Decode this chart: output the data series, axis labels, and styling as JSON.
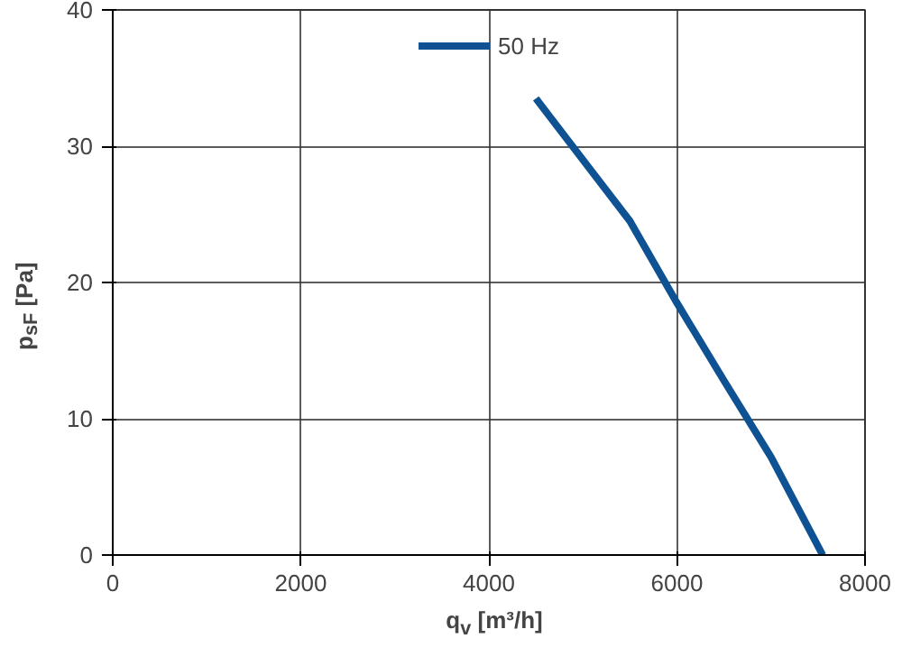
{
  "chart_data": {
    "type": "line",
    "xlabel": "q$_{v}$ [m³/h]",
    "ylabel": "p$_{sF}$ [Pa]",
    "xlim": [
      0,
      8000
    ],
    "xticks": [
      0,
      2000,
      4000,
      6000,
      8000
    ],
    "ylim": [
      0,
      40
    ],
    "yticks": [
      0,
      10,
      20,
      30,
      40
    ],
    "grid": true,
    "legend": "top",
    "marker": "none",
    "line_style": "solid",
    "series": [
      {
        "name": "50 Hz",
        "color": "#0f5294",
        "x": [
          4500,
          5000,
          5500,
          6000,
          6500,
          7000,
          7550
        ],
        "values": [
          33.5,
          29,
          24.5,
          18.5,
          12.8,
          7.2,
          0
        ]
      }
    ]
  }
}
